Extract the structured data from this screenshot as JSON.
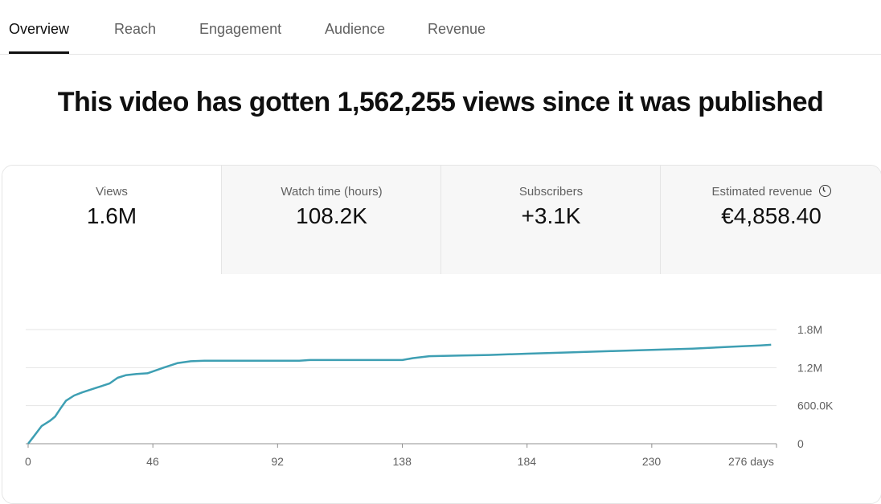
{
  "tabs": [
    "Overview",
    "Reach",
    "Engagement",
    "Audience",
    "Revenue"
  ],
  "headline": "This video has gotten 1,562,255 views since it was published",
  "metrics": [
    {
      "label": "Views",
      "value": "1.6M"
    },
    {
      "label": "Watch time (hours)",
      "value": "108.2K"
    },
    {
      "label": "Subscribers",
      "value": "+3.1K"
    },
    {
      "label": "Estimated revenue",
      "value": "€4,858.40"
    }
  ],
  "accent": "#3e9fb3",
  "chart_data": {
    "type": "line",
    "title": "",
    "xlabel": "days",
    "ylabel": "Views",
    "x_ticks": [
      "0",
      "46",
      "92",
      "138",
      "184",
      "230",
      "276 days"
    ],
    "x_tick_values": [
      0,
      46,
      92,
      138,
      184,
      230,
      276
    ],
    "y_ticks": [
      "0",
      "600.0K",
      "1.2M",
      "1.8M"
    ],
    "y_tick_values": [
      0,
      600000,
      1200000,
      1800000
    ],
    "xlim": [
      0,
      276
    ],
    "ylim": [
      0,
      1800000
    ],
    "series": [
      {
        "name": "Views",
        "x": [
          0,
          2,
          5,
          8,
          10,
          12,
          14,
          17,
          20,
          25,
          30,
          33,
          36,
          40,
          44,
          46,
          50,
          55,
          60,
          65,
          80,
          100,
          104,
          120,
          138,
          142,
          148,
          160,
          170,
          184,
          200,
          215,
          230,
          245,
          260,
          270,
          274
        ],
        "y": [
          0,
          110000,
          280000,
          360000,
          430000,
          560000,
          680000,
          760000,
          810000,
          880000,
          950000,
          1040000,
          1080000,
          1100000,
          1110000,
          1140000,
          1200000,
          1270000,
          1300000,
          1310000,
          1310000,
          1310000,
          1320000,
          1320000,
          1320000,
          1350000,
          1380000,
          1390000,
          1400000,
          1420000,
          1440000,
          1460000,
          1480000,
          1500000,
          1530000,
          1550000,
          1560000
        ]
      }
    ]
  }
}
